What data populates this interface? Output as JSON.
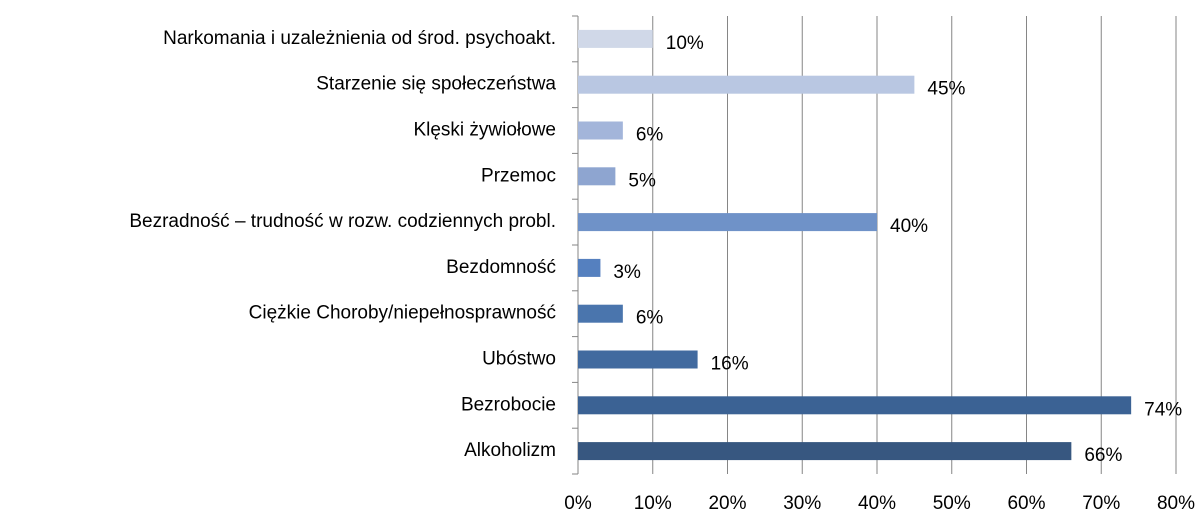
{
  "chart_data": {
    "type": "barh",
    "categories": [
      "Narkomania i uzależnienia od środ. psychoakt.",
      "Starzenie się społeczeństwa",
      "Klęski żywiołowe",
      "Przemoc",
      "Bezradność – trudność w rozw. codziennych probl.",
      "Bezdomność",
      "Ciężkie Choroby/niepełnosprawność",
      "Ubóstwo",
      "Bezrobocie",
      "Alkoholizm"
    ],
    "values": [
      10,
      45,
      6,
      5,
      40,
      3,
      6,
      16,
      74,
      66
    ],
    "value_labels": [
      "10%",
      "45%",
      "6%",
      "5%",
      "40%",
      "3%",
      "6%",
      "16%",
      "74%",
      "66%"
    ],
    "colors": [
      "#d0d8e8",
      "#b9c7e2",
      "#a3b5da",
      "#8ea5d0",
      "#6f92c8",
      "#5580bf",
      "#4a75ad",
      "#416a9f",
      "#3b6294",
      "#375780"
    ],
    "xlim": [
      0,
      80
    ],
    "xticks": [
      {
        "value": 0,
        "label": "0%"
      },
      {
        "value": 10,
        "label": "10%"
      },
      {
        "value": 20,
        "label": "20%"
      },
      {
        "value": 30,
        "label": "30%"
      },
      {
        "value": 40,
        "label": "40%"
      },
      {
        "value": 50,
        "label": "50%"
      },
      {
        "value": 60,
        "label": "60%"
      },
      {
        "value": 70,
        "label": "70%"
      },
      {
        "value": 80,
        "label": "80%"
      }
    ],
    "grid": true
  }
}
